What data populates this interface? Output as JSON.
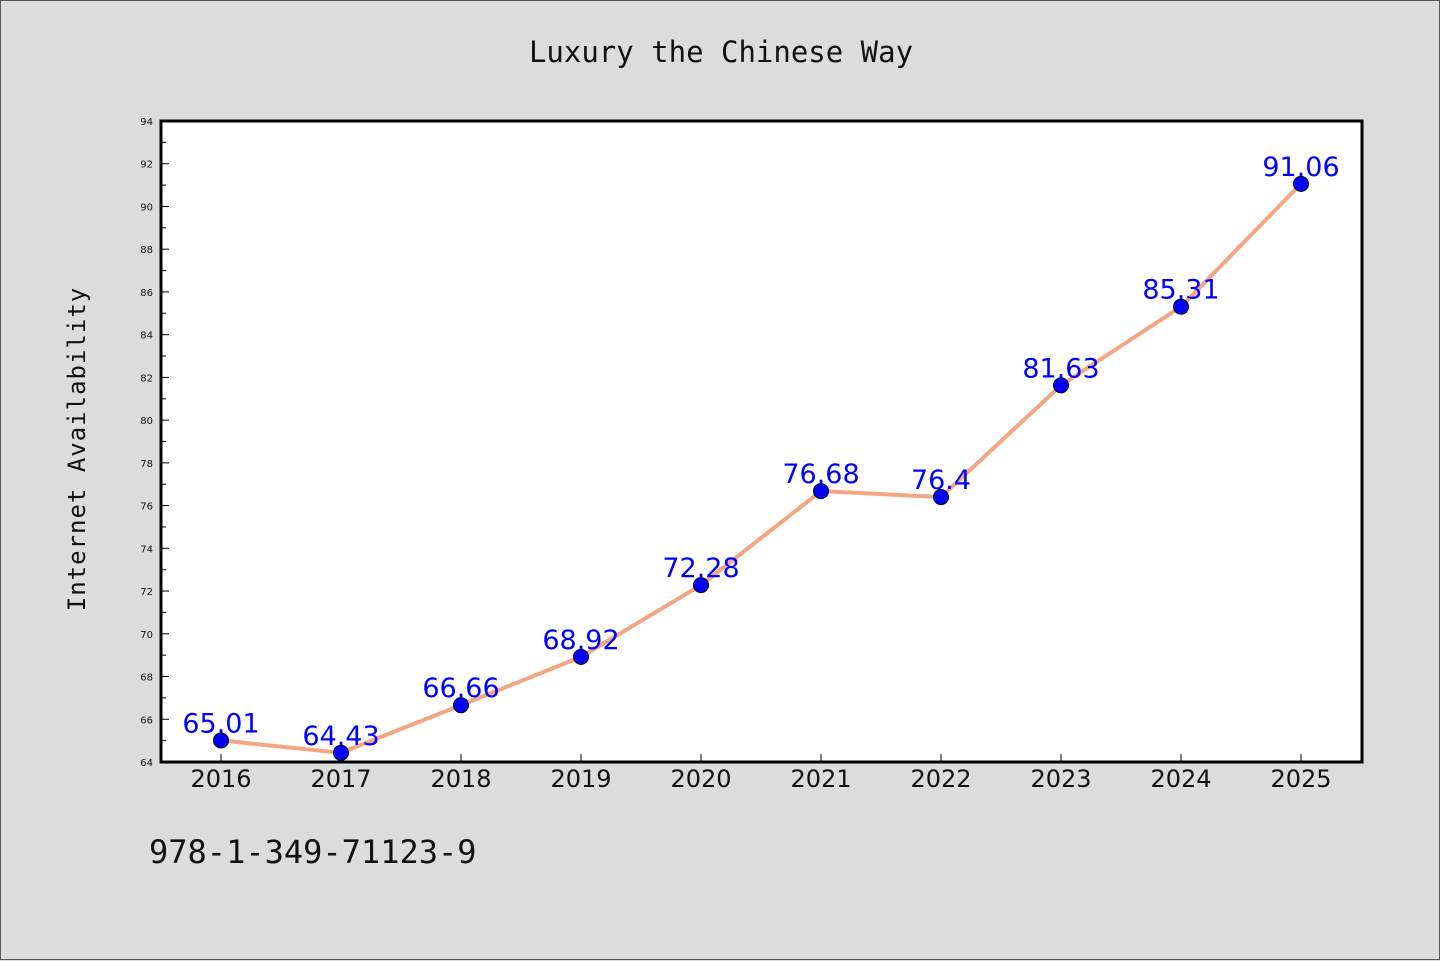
{
  "title": "Luxury the Chinese Way",
  "footnote": "978-1-349-71123-9",
  "colors": {
    "background": "#dcdcdc",
    "plot_background": "#ffffff",
    "line": "#f4a582",
    "marker": "#0000ff",
    "data_label": "#0000ff"
  },
  "chart_data": {
    "type": "line",
    "title": "Luxury the Chinese Way",
    "xlabel": "",
    "ylabel": "Internet Availability",
    "categories": [
      "2016",
      "2017",
      "2018",
      "2019",
      "2020",
      "2021",
      "2022",
      "2023",
      "2024",
      "2025"
    ],
    "values": [
      65.01,
      64.43,
      66.66,
      68.92,
      72.28,
      76.68,
      76.4,
      81.63,
      85.31,
      91.06
    ],
    "data_labels": [
      "65.01",
      "64.43",
      "66.66",
      "68.92",
      "72.28",
      "76.68",
      "76.4",
      "81.63",
      "85.31",
      "91.06"
    ],
    "ylim": [
      64,
      94
    ],
    "yticks": [
      64,
      66,
      68,
      70,
      72,
      74,
      76,
      78,
      80,
      82,
      84,
      86,
      88,
      90,
      92,
      94
    ],
    "ytick_labels": [
      "64",
      "66",
      "68",
      "70",
      "72",
      "74",
      "76",
      "78",
      "80",
      "82",
      "84",
      "86",
      "88",
      "90",
      "92",
      "94"
    ],
    "grid": false,
    "legend": false
  }
}
